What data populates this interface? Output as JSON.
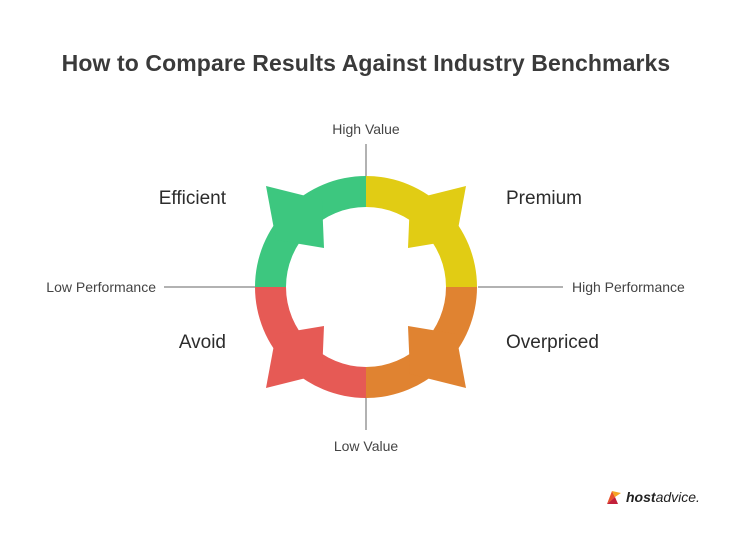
{
  "title": "How to Compare Results Against Industry Benchmarks",
  "axes": {
    "top": "High Value",
    "bottom": "Low Value",
    "left": "Low Performance",
    "right": "High Performance"
  },
  "quadrants": {
    "top_left": {
      "label": "Efficient",
      "color": "#3dc77f"
    },
    "top_right": {
      "label": "Premium",
      "color": "#e1cc14"
    },
    "bottom_right": {
      "label": "Overpriced",
      "color": "#e08331"
    },
    "bottom_left": {
      "label": "Avoid",
      "color": "#e65a55"
    }
  },
  "logo": {
    "bold": "host",
    "rest": "advice."
  }
}
